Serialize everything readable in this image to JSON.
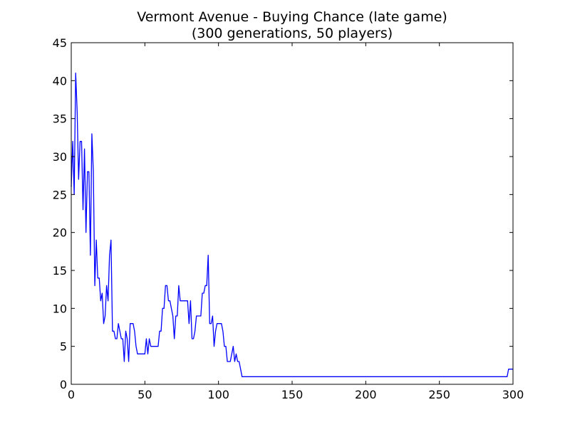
{
  "chart_data": {
    "type": "line",
    "title": "Vermont Avenue - Buying Chance (late game)",
    "subtitle": "(300 generations, 50 players)",
    "xlabel": "",
    "ylabel": "",
    "xlim": [
      0,
      300
    ],
    "ylim": [
      0,
      45
    ],
    "xticks": [
      0,
      50,
      100,
      150,
      200,
      250,
      300
    ],
    "yticks": [
      0,
      5,
      10,
      15,
      20,
      25,
      30,
      35,
      40,
      45
    ],
    "grid": false,
    "line_color": "#0000ff",
    "series": [
      {
        "x": [
          0,
          1,
          2,
          3,
          4,
          5,
          6,
          7,
          8,
          9,
          10,
          11,
          12,
          13,
          14,
          15,
          16,
          17,
          18,
          19,
          20,
          21,
          22,
          23,
          24,
          25,
          26,
          27,
          28,
          29,
          30,
          31,
          32,
          33,
          34,
          35,
          36,
          37,
          38,
          39,
          40,
          41,
          42,
          43,
          44,
          45,
          46,
          47,
          48,
          49,
          50,
          51,
          52,
          53,
          54,
          55,
          56,
          57,
          58,
          59,
          60,
          61,
          62,
          63,
          64,
          65,
          66,
          67,
          68,
          69,
          70,
          71,
          72,
          73,
          74,
          75,
          76,
          77,
          78,
          79,
          80,
          81,
          82,
          83,
          84,
          85,
          86,
          87,
          88,
          89,
          90,
          91,
          92,
          93,
          94,
          95,
          96,
          97,
          98,
          99,
          100,
          101,
          102,
          103,
          104,
          105,
          106,
          107,
          108,
          109,
          110,
          111,
          112,
          113,
          114,
          115,
          116,
          117,
          296,
          297,
          300
        ],
        "y": [
          26,
          32,
          25,
          41,
          36,
          27,
          32,
          32,
          23,
          31,
          20,
          28,
          28,
          17,
          33,
          28,
          13,
          19,
          14,
          14,
          11,
          12,
          8,
          9,
          13,
          11,
          17,
          19,
          7,
          7,
          6,
          6,
          8,
          7,
          6,
          6,
          3,
          7,
          6,
          3,
          8,
          8,
          8,
          7,
          5,
          4,
          4,
          4,
          4,
          4,
          4,
          6,
          4,
          6,
          5,
          5,
          5,
          5,
          5,
          5,
          7,
          7,
          10,
          10,
          13,
          13,
          11,
          11,
          10,
          9,
          6,
          9,
          9,
          13,
          11,
          11,
          11,
          11,
          11,
          11,
          8,
          11,
          6,
          6,
          7,
          9,
          9,
          9,
          9,
          12,
          12,
          13,
          13,
          17,
          8,
          8,
          9,
          5,
          7,
          8,
          8,
          8,
          8,
          7,
          5,
          5,
          3,
          3,
          3,
          4,
          5,
          3,
          4,
          3,
          3,
          2,
          1,
          1,
          1,
          2,
          2
        ]
      }
    ]
  }
}
